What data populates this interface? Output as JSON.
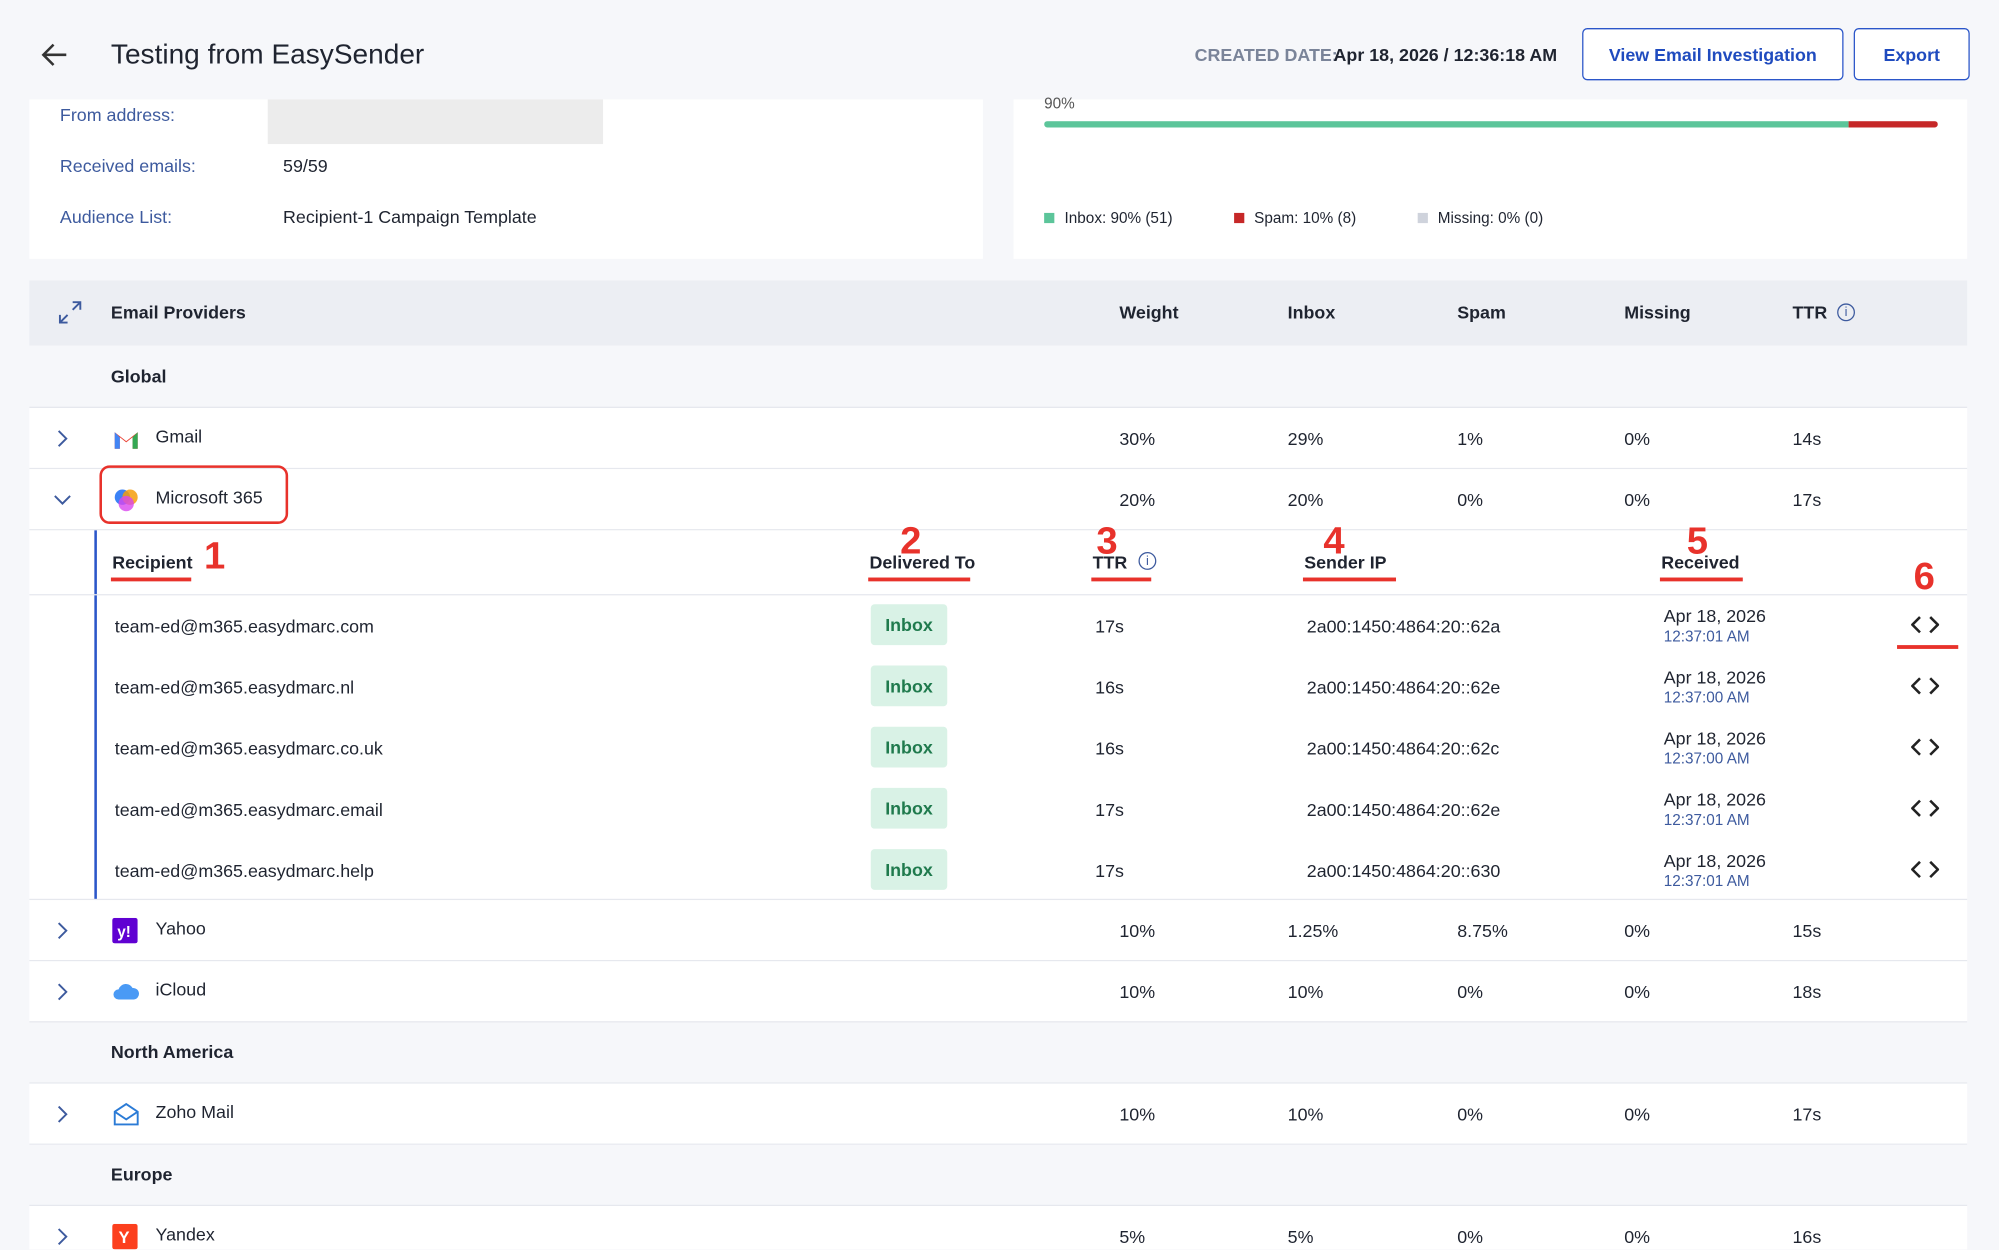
{
  "header": {
    "title": "Testing from EasySender",
    "created_label": "CREATED DATE:",
    "created_value": "Apr 18, 2026 / 12:36:18 AM",
    "buttons": [
      "View Email Investigation",
      "Export"
    ]
  },
  "info": {
    "from_label": "From address:",
    "received_label": "Received emails:",
    "received_value": "59/59",
    "audience_label": "Audience List:",
    "audience_value": "Recipient-1 Campaign Template"
  },
  "progress": {
    "top_label": "90%",
    "bar": {
      "inbox": 90,
      "spam": 10,
      "missing": 0
    },
    "legend": [
      "Inbox: 90% (51)",
      "Spam: 10% (8)",
      "Missing: 0% (0)"
    ]
  },
  "table": {
    "columns": [
      "Email Providers",
      "Weight",
      "Inbox",
      "Spam",
      "Missing",
      "TTR"
    ],
    "groups": [
      {
        "name": "Global",
        "providers": [
          {
            "name": "Gmail",
            "values": [
              "30%",
              "29%",
              "1%",
              "0%",
              "14s"
            ]
          },
          {
            "name": "Microsoft 365",
            "values": [
              "20%",
              "20%",
              "0%",
              "0%",
              "17s"
            ],
            "expanded": true
          },
          {
            "name": "Yahoo",
            "values": [
              "10%",
              "1.25%",
              "8.75%",
              "0%",
              "15s"
            ]
          },
          {
            "name": "iCloud",
            "values": [
              "10%",
              "10%",
              "0%",
              "0%",
              "18s"
            ]
          }
        ]
      },
      {
        "name": "North America",
        "providers": [
          {
            "name": "Zoho Mail",
            "values": [
              "10%",
              "10%",
              "0%",
              "0%",
              "17s"
            ]
          }
        ]
      },
      {
        "name": "Europe",
        "providers": [
          {
            "name": "Yandex",
            "values": [
              "5%",
              "5%",
              "0%",
              "0%",
              "16s"
            ]
          }
        ]
      }
    ]
  },
  "details": {
    "columns": [
      "Recipient",
      "Delivered To",
      "TTR",
      "Sender IP",
      "Received"
    ],
    "rows": [
      {
        "recipient": "team-ed@m365.easydmarc.com",
        "status": "Inbox",
        "ttr": "17s",
        "ip": "2a00:1450:4864:20::62a",
        "date": "Apr 18, 2026",
        "time": "12:37:01 AM"
      },
      {
        "recipient": "team-ed@m365.easydmarc.nl",
        "status": "Inbox",
        "ttr": "16s",
        "ip": "2a00:1450:4864:20::62e",
        "date": "Apr 18, 2026",
        "time": "12:37:00 AM"
      },
      {
        "recipient": "team-ed@m365.easydmarc.co.uk",
        "status": "Inbox",
        "ttr": "16s",
        "ip": "2a00:1450:4864:20::62c",
        "date": "Apr 18, 2026",
        "time": "12:37:00 AM"
      },
      {
        "recipient": "team-ed@m365.easydmarc.email",
        "status": "Inbox",
        "ttr": "17s",
        "ip": "2a00:1450:4864:20::62e",
        "date": "Apr 18, 2026",
        "time": "12:37:01 AM"
      },
      {
        "recipient": "team-ed@m365.easydmarc.help",
        "status": "Inbox",
        "ttr": "17s",
        "ip": "2a00:1450:4864:20::630",
        "date": "Apr 18, 2026",
        "time": "12:37:01 AM"
      }
    ]
  },
  "annotations": [
    "1",
    "2",
    "3",
    "4",
    "5",
    "6"
  ]
}
